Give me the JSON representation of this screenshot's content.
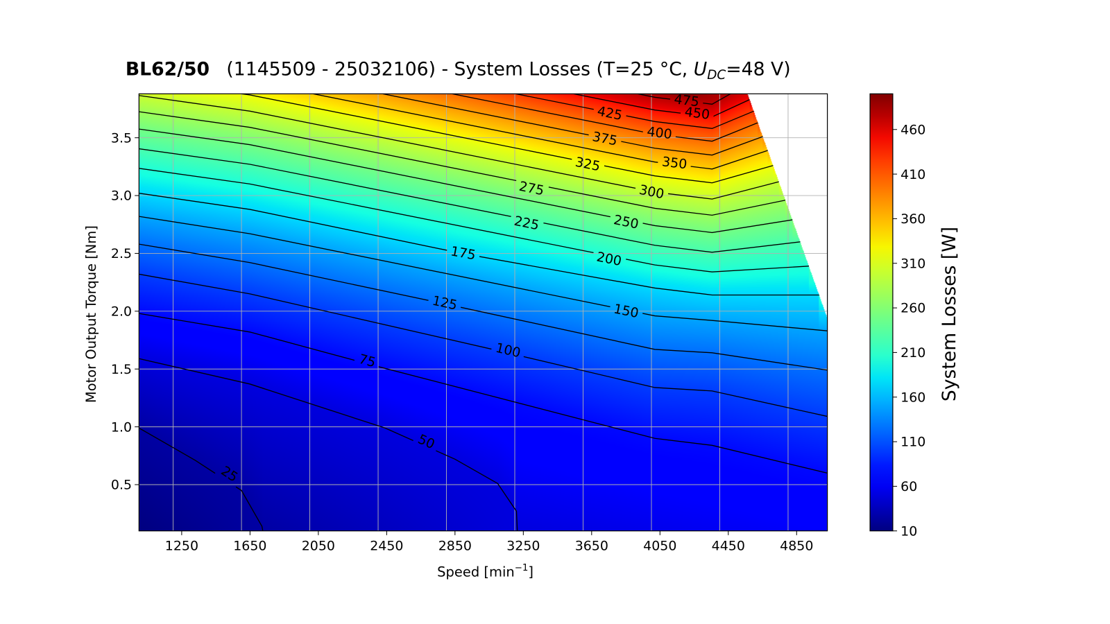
{
  "chart_data": {
    "type": "contour",
    "title_bold": "BL62/50",
    "title_main": "(1145509 - 25032106) - System Losses (T=25 °C, ",
    "title_var": "U",
    "title_sub": "DC",
    "title_end": "=48 V)",
    "xlabel": "Speed [min",
    "xlabel_sup": "−1",
    "xlabel_end": "]",
    "ylabel": "Motor Output Torque [Nm]",
    "colorbar_label": "System Losses [W]",
    "xlim": [
      1000,
      5030
    ],
    "ylim": [
      0.1,
      3.88
    ],
    "xticks": [
      1250,
      1650,
      2050,
      2450,
      2850,
      3250,
      3650,
      4050,
      4450,
      4850
    ],
    "yticks": [
      "0.5",
      "1.0",
      "1.5",
      "2.0",
      "2.5",
      "3.0",
      "3.5"
    ],
    "x_grid": [
      1200,
      1600,
      2000,
      2400,
      2800,
      3200,
      3600,
      4000,
      4400,
      4800
    ],
    "grid": true,
    "colormap": "jet",
    "vmin": 10,
    "vmax": 500,
    "colorbar_ticks": [
      "10",
      "60",
      "110",
      "160",
      "210",
      "260",
      "310",
      "360",
      "410",
      "460"
    ],
    "valid_region_boundary": [
      [
        4563,
        3.88
      ],
      [
        5030,
        1.94
      ]
    ],
    "edge_values": {
      "bottom": [
        [
          1000,
          10
        ],
        [
          1725,
          25
        ],
        [
          3215,
          50
        ],
        [
          5030,
          64
        ]
      ],
      "top": [
        [
          1000,
          308
        ],
        [
          1600,
          325
        ],
        [
          2020,
          350
        ],
        [
          2427,
          375
        ],
        [
          2834,
          400
        ],
        [
          3206,
          425
        ],
        [
          3545,
          450
        ],
        [
          3920,
          475
        ],
        [
          4200,
          497
        ],
        [
          4463,
          475
        ],
        [
          4563,
          462
        ]
      ]
    },
    "contours": [
      {
        "level": "25",
        "points": [
          [
            1000,
            0.99
          ],
          [
            1330,
            0.71
          ],
          [
            1600,
            0.45
          ],
          [
            1720,
            0.14
          ],
          [
            1725,
            0.1
          ]
        ],
        "label_at": [
          1529,
          0.59
        ]
      },
      {
        "level": "50",
        "points": [
          [
            1000,
            1.59
          ],
          [
            1650,
            1.37
          ],
          [
            2440,
            0.99
          ],
          [
            2850,
            0.72
          ],
          [
            3100,
            0.51
          ],
          [
            3210,
            0.27
          ],
          [
            3215,
            0.1
          ]
        ],
        "label_at": [
          2682,
          0.87
        ]
      },
      {
        "level": "75",
        "points": [
          [
            1000,
            1.98
          ],
          [
            1650,
            1.82
          ],
          [
            2350,
            1.54
          ],
          [
            4020,
            0.9
          ],
          [
            4355,
            0.84
          ],
          [
            5030,
            0.6
          ]
        ],
        "label_at": [
          2336,
          1.57
        ]
      },
      {
        "level": "100",
        "points": [
          [
            1000,
            2.32
          ],
          [
            1650,
            2.15
          ],
          [
            3100,
            1.66
          ],
          [
            4020,
            1.34
          ],
          [
            4355,
            1.31
          ],
          [
            5030,
            1.09
          ]
        ],
        "label_at": [
          3161,
          1.66
        ]
      },
      {
        "level": "125",
        "points": [
          [
            1000,
            2.58
          ],
          [
            1650,
            2.42
          ],
          [
            2770,
            2.07
          ],
          [
            4020,
            1.67
          ],
          [
            4355,
            1.64
          ],
          [
            5030,
            1.49
          ]
        ],
        "label_at": [
          2790,
          2.07
        ]
      },
      {
        "level": "150",
        "points": [
          [
            1000,
            2.82
          ],
          [
            1650,
            2.67
          ],
          [
            4020,
            1.96
          ],
          [
            4355,
            1.92
          ],
          [
            5030,
            1.83
          ]
        ],
        "label_at": [
          3852,
          2.0
        ]
      },
      {
        "level": "175",
        "points": [
          [
            1000,
            3.02
          ],
          [
            1650,
            2.88
          ],
          [
            2890,
            2.5
          ],
          [
            4020,
            2.2
          ],
          [
            4355,
            2.14
          ],
          [
            4982,
            2.14
          ]
        ],
        "label_at": [
          2898,
          2.5
        ]
      },
      {
        "level": "200",
        "points": [
          [
            1000,
            3.235
          ],
          [
            1650,
            3.1
          ],
          [
            4020,
            2.4
          ],
          [
            4355,
            2.34
          ],
          [
            4922,
            2.39
          ]
        ],
        "label_at": [
          3752,
          2.45
        ]
      },
      {
        "level": "225",
        "points": [
          [
            1000,
            3.405
          ],
          [
            1650,
            3.27
          ],
          [
            4020,
            2.57
          ],
          [
            4355,
            2.51
          ],
          [
            4871,
            2.6
          ]
        ],
        "label_at": [
          3269,
          2.76
        ]
      },
      {
        "level": "250",
        "points": [
          [
            1000,
            3.575
          ],
          [
            1650,
            3.44
          ],
          [
            4020,
            2.74
          ],
          [
            4355,
            2.68
          ],
          [
            4825,
            2.79
          ]
        ],
        "label_at": [
          3852,
          2.77
        ]
      },
      {
        "level": "275",
        "points": [
          [
            1000,
            3.725
          ],
          [
            1650,
            3.59
          ],
          [
            4020,
            2.89
          ],
          [
            4355,
            2.83
          ],
          [
            4784,
            2.96
          ]
        ],
        "label_at": [
          3298,
          3.06
        ]
      },
      {
        "level": "300",
        "points": [
          [
            1000,
            3.865
          ],
          [
            1650,
            3.73
          ],
          [
            4020,
            3.03
          ],
          [
            4355,
            2.97
          ],
          [
            4746,
            3.12
          ]
        ],
        "label_at": [
          4001,
          3.03
        ]
      },
      {
        "level": "325",
        "points": [
          [
            1600,
            3.88
          ],
          [
            1650,
            3.87
          ],
          [
            4020,
            3.17
          ],
          [
            4355,
            3.11
          ],
          [
            4712,
            3.26
          ]
        ],
        "label_at": [
          3627,
          3.27
        ]
      },
      {
        "level": "350",
        "points": [
          [
            2020,
            3.88
          ],
          [
            4020,
            3.29
          ],
          [
            4355,
            3.23
          ],
          [
            4681,
            3.39
          ]
        ],
        "label_at": [
          4135,
          3.28
        ]
      },
      {
        "level": "375",
        "points": [
          [
            2427,
            3.88
          ],
          [
            4020,
            3.41
          ],
          [
            4355,
            3.35
          ],
          [
            4652,
            3.51
          ]
        ],
        "label_at": [
          3727,
          3.49
        ]
      },
      {
        "level": "400",
        "points": [
          [
            2834,
            3.88
          ],
          [
            4020,
            3.53
          ],
          [
            4355,
            3.47
          ],
          [
            4623,
            3.63
          ]
        ],
        "label_at": [
          4047,
          3.54
        ]
      },
      {
        "level": "425",
        "points": [
          [
            3206,
            3.88
          ],
          [
            4020,
            3.64
          ],
          [
            4355,
            3.58
          ],
          [
            4599,
            3.73
          ]
        ],
        "label_at": [
          3756,
          3.71
        ]
      },
      {
        "level": "450",
        "points": [
          [
            3545,
            3.88
          ],
          [
            4020,
            3.74
          ],
          [
            4355,
            3.68
          ],
          [
            4575,
            3.83
          ]
        ],
        "label_at": [
          4268,
          3.71
        ]
      },
      {
        "level": "475",
        "points": [
          [
            3920,
            3.88
          ],
          [
            4020,
            3.85
          ],
          [
            4355,
            3.79
          ],
          [
            4463,
            3.88
          ]
        ],
        "label_at": [
          4206,
          3.82
        ]
      }
    ]
  }
}
